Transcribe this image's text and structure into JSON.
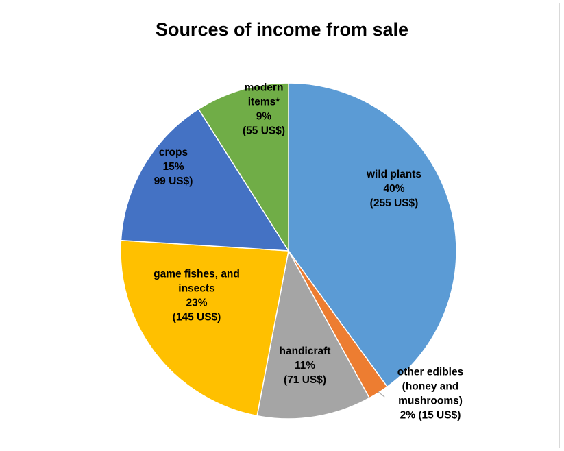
{
  "chart_data": {
    "type": "pie",
    "title": "Sources of income from sale",
    "start_angle_deg": 0,
    "direction": "clockwise",
    "slices": [
      {
        "name": "wild plants",
        "percent": 40,
        "value": 255,
        "value_label": "(255 US$)",
        "color": "#5b9bd5",
        "label_lines": [
          "wild plants",
          "40%",
          "(255 US$)"
        ],
        "label_color": "#000000"
      },
      {
        "name": "other edibles (honey and mushrooms)",
        "percent": 2,
        "value": 15,
        "value_label": "2% (15 US$)",
        "color": "#ed7d31",
        "label_lines": [
          "other edibles",
          "(honey and",
          "mushrooms)",
          "2% (15 US$)"
        ],
        "label_color": "#000000"
      },
      {
        "name": "handicraft",
        "percent": 11,
        "value": 71,
        "value_label": "(71 US$)",
        "color": "#a5a5a5",
        "label_lines": [
          "handicraft",
          "11%",
          "(71 US$)"
        ],
        "label_color": "#000000"
      },
      {
        "name": "game fishes, and insects",
        "percent": 23,
        "value": 145,
        "value_label": "(145 US$)",
        "color": "#ffc000",
        "label_lines": [
          "game fishes, and",
          "insects",
          "23%",
          "(145 US$)"
        ],
        "label_color": "#000000"
      },
      {
        "name": "crops",
        "percent": 15,
        "value": 99,
        "value_label": "99 US$)",
        "color": "#4472c4",
        "label_lines": [
          "crops",
          "15%",
          "99 US$)"
        ],
        "label_color": "#000000"
      },
      {
        "name": "modern items*",
        "percent": 9,
        "value": 55,
        "value_label": "(55 US$)",
        "color": "#70ad47",
        "label_lines": [
          "modern",
          "items*",
          "9%",
          "(55 US$)"
        ],
        "label_color": "#000000"
      }
    ]
  }
}
